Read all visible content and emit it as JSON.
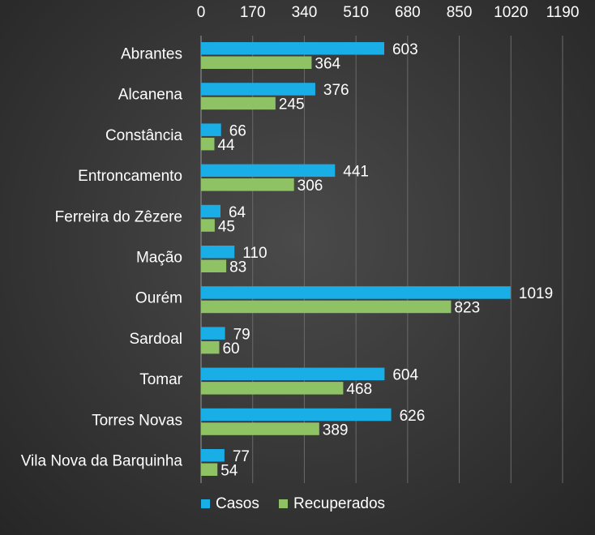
{
  "chart_data": {
    "type": "bar",
    "orientation": "horizontal",
    "title": "",
    "xlabel": "",
    "ylabel": "",
    "xlim": [
      0,
      1190
    ],
    "x_ticks": [
      "0",
      "170",
      "340",
      "510",
      "680",
      "850",
      "1020",
      "1190"
    ],
    "x_axis_position": "top",
    "grid": true,
    "legend": "bottom",
    "categories": [
      "Abrantes",
      "Alcanena",
      "Constância",
      "Entroncamento",
      "Ferreira do Zêzere",
      "Mação",
      "Ourém",
      "Sardoal",
      "Tomar",
      "Torres Novas",
      "Vila Nova da Barquinha"
    ],
    "series": [
      {
        "name": "Casos",
        "color": "#1aaee6",
        "values": [
          603,
          376,
          66,
          441,
          64,
          110,
          1019,
          79,
          604,
          626,
          77
        ]
      },
      {
        "name": "Recuperados",
        "color": "#8fc264",
        "values": [
          364,
          245,
          44,
          306,
          45,
          83,
          823,
          60,
          468,
          389,
          54
        ]
      }
    ]
  }
}
